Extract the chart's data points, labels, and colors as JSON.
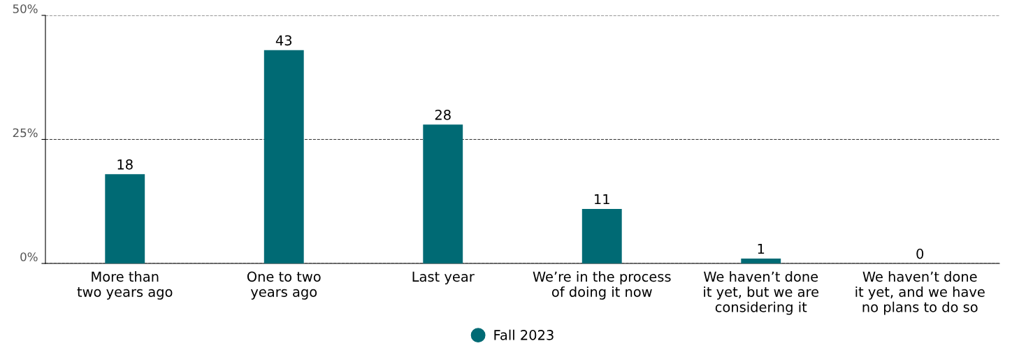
{
  "chart_data": {
    "type": "bar",
    "categories": [
      "More than\ntwo years ago",
      "One to two\nyears ago",
      "Last year",
      "We’re in the process\nof doing it now",
      "We haven’t done\nit yet, but we are\nconsidering it",
      "We haven’t done\nit yet, and we have\nno plans to do so"
    ],
    "series": [
      {
        "name": "Fall 2023",
        "color": "#006a74",
        "values": [
          18,
          43,
          28,
          11,
          1,
          0
        ]
      }
    ],
    "ylim": [
      0,
      50
    ],
    "yticks": [
      {
        "value": 0,
        "label": "0%"
      },
      {
        "value": 25,
        "label": "25%"
      },
      {
        "value": 50,
        "label": "50%"
      }
    ],
    "grid": "y",
    "legend": "bottom",
    "marker": "circle",
    "data_labels": true
  }
}
